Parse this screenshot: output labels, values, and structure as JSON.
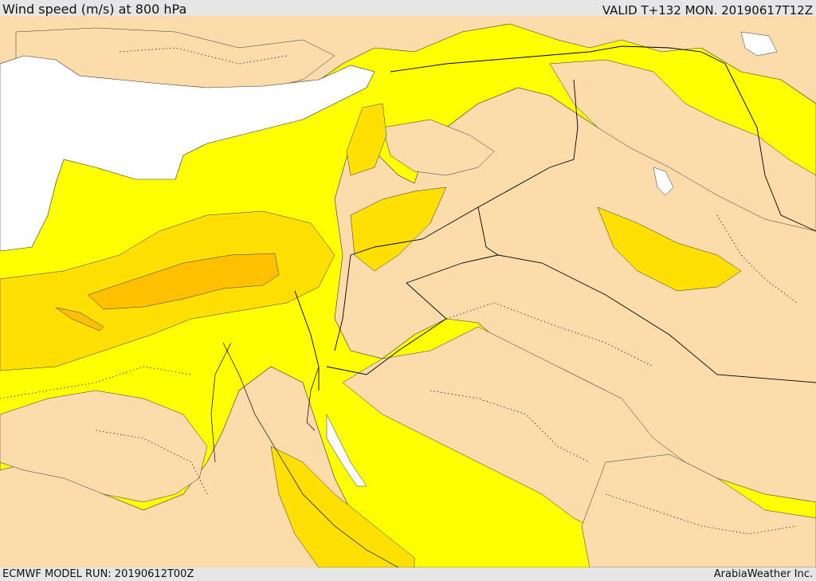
{
  "header": {
    "title": "Wind speed (m/s) at 800 hPa",
    "valid_time": "VALID T+132 MON. 20190617T12Z"
  },
  "footer": {
    "model_run": "ECMWF MODEL RUN: 20190612T00Z",
    "credit": "ArabiaWeather Inc."
  },
  "colors": {
    "calm": "#fcdcaa",
    "light": "#ffff00",
    "moderate": "#ffe000",
    "strong": "#ffc000",
    "very_strong": "#ffb000",
    "sea_mask": "#ffffff",
    "frame": "#e6e6e6"
  }
}
